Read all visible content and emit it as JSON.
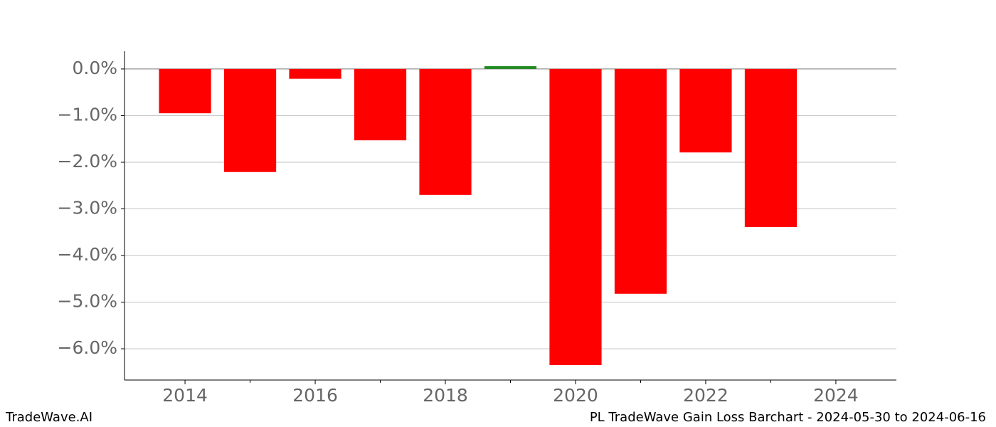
{
  "chart_data": {
    "type": "bar",
    "title": "PL TradeWave Gain Loss Barchart - 2024-05-30 to 2024-06-16",
    "watermark": "TradeWave.AI",
    "x": [
      2014,
      2015,
      2016,
      2017,
      2018,
      2019,
      2020,
      2021,
      2022,
      2023
    ],
    "values": [
      -0.95,
      -2.21,
      -0.21,
      -1.53,
      -2.7,
      0.06,
      -6.35,
      -4.82,
      -1.79,
      -3.39
    ],
    "colors": [
      "#ff0000",
      "#ff0000",
      "#ff0000",
      "#ff0000",
      "#ff0000",
      "#228b22",
      "#ff0000",
      "#ff0000",
      "#ff0000",
      "#ff0000"
    ],
    "bar_width": 0.8,
    "xlim": [
      2013.07,
      2024.93
    ],
    "xticks": [
      2014,
      2016,
      2018,
      2020,
      2022,
      2024
    ],
    "minor_xticks": [
      2015,
      2017,
      2019,
      2021,
      2023
    ],
    "ylim": [
      -6.67,
      0.38
    ],
    "yticks": [
      {
        "value": 0,
        "label": "0.0%"
      },
      {
        "value": -1,
        "label": "−1.0%"
      },
      {
        "value": -2,
        "label": "−2.0%"
      },
      {
        "value": -3,
        "label": "−3.0%"
      },
      {
        "value": -4,
        "label": "−4.0%"
      },
      {
        "value": -5,
        "label": "−5.0%"
      },
      {
        "value": -6,
        "label": "−6.0%"
      }
    ],
    "grid": true
  }
}
